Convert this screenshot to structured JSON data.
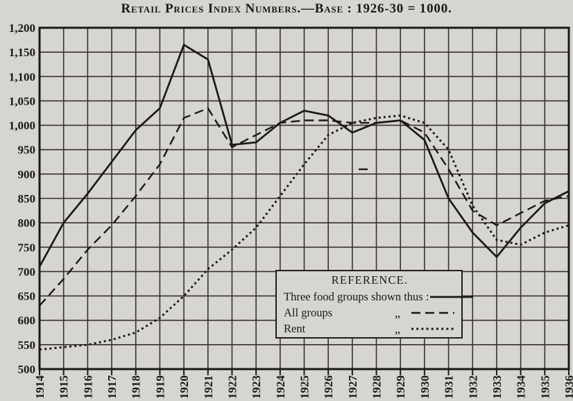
{
  "title": "Retail Prices Index Numbers.—Base : 1926-30 = 1000.",
  "colors": {
    "paper": "#d7d5d0",
    "ink": "#1b1916",
    "grid": "#363129"
  },
  "legend": {
    "title": "REFERENCE.",
    "rows": [
      {
        "label": "Three food groups shown thus :",
        "ditto": "",
        "style": "solid"
      },
      {
        "label": "All groups",
        "ditto": "„",
        "style": "dashed"
      },
      {
        "label": "Rent",
        "ditto": "„",
        "style": "dotted"
      }
    ]
  },
  "chart_data": {
    "type": "line",
    "title": "Retail Prices Index Numbers.—Base : 1926-30 = 1000.",
    "xlabel": "",
    "ylabel": "",
    "x": [
      1914,
      1915,
      1916,
      1917,
      1918,
      1919,
      1920,
      1921,
      1922,
      1923,
      1924,
      1925,
      1926,
      1927,
      1928,
      1929,
      1930,
      1931,
      1932,
      1933,
      1934,
      1935,
      1936
    ],
    "series": [
      {
        "name": "Three food groups",
        "style": "solid",
        "values": [
          710,
          800,
          860,
          925,
          990,
          1035,
          1165,
          1135,
          960,
          965,
          1005,
          1030,
          1020,
          985,
          1005,
          1010,
          970,
          850,
          780,
          730,
          790,
          840,
          865
        ]
      },
      {
        "name": "All groups",
        "style": "dashed",
        "values": [
          630,
          685,
          745,
          795,
          855,
          920,
          1015,
          1035,
          955,
          980,
          1005,
          1010,
          1010,
          1005,
          1005,
          1010,
          985,
          910,
          825,
          795,
          820,
          845,
          855
        ]
      },
      {
        "name": "Rent",
        "style": "dotted",
        "values": [
          540,
          545,
          550,
          560,
          575,
          605,
          650,
          705,
          745,
          790,
          855,
          920,
          980,
          1005,
          1015,
          1020,
          1005,
          950,
          835,
          765,
          755,
          780,
          795
        ]
      }
    ],
    "ylim": [
      500,
      1200
    ],
    "yticks": [
      1200,
      1150,
      1100,
      1050,
      1000,
      950,
      900,
      850,
      800,
      750,
      700,
      650,
      600,
      550,
      500
    ],
    "ytick_labels": [
      "1,200",
      "1,150",
      "1,100",
      "1,050",
      "1,000",
      "950",
      "900",
      "850",
      "800",
      "750",
      "700",
      "650",
      "600",
      "550",
      "500"
    ],
    "grid": true,
    "legend_position": "inside-lower-right"
  }
}
